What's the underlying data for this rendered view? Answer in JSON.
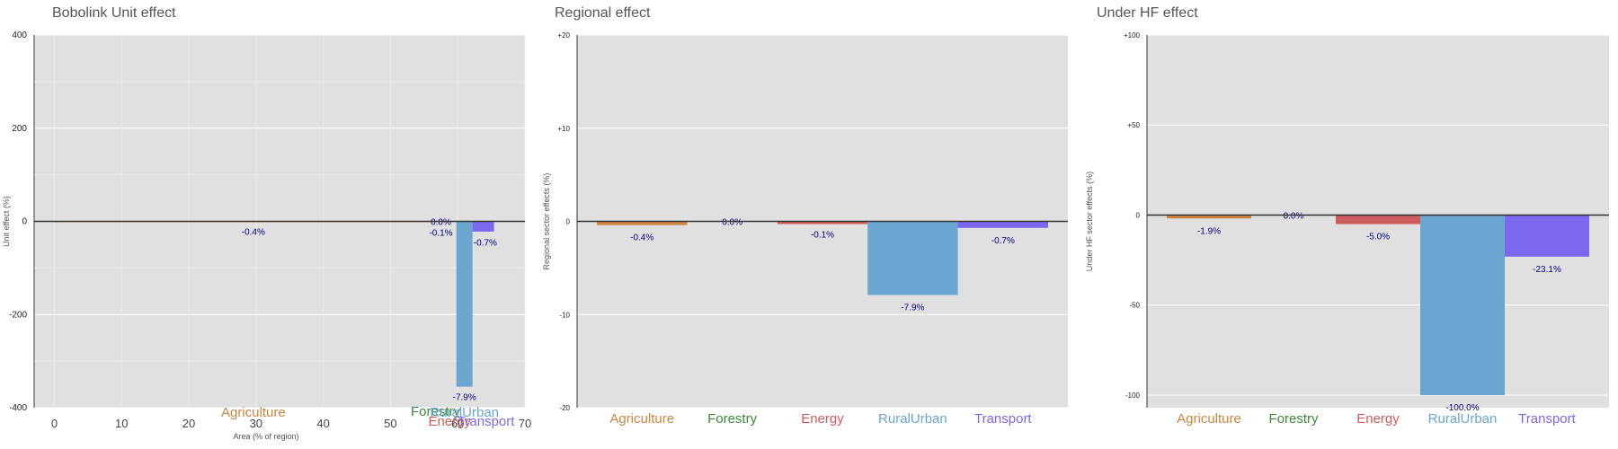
{
  "chart_data": [
    {
      "type": "bar",
      "variant": "area-width",
      "title": "Bobolink Unit effect",
      "xlabel": "Area (% of region)",
      "ylabel": "Unit effect (%)",
      "xlim": [
        -3,
        70
      ],
      "ylim": [
        -400,
        400
      ],
      "x_ticks": [
        0,
        10,
        20,
        30,
        40,
        50,
        60,
        70
      ],
      "y_ticks": [
        400,
        200,
        0,
        -200,
        -400
      ],
      "y_tick_labels": [
        "400",
        "200",
        "0",
        "-200",
        "-400"
      ],
      "grid": true,
      "bars": [
        {
          "name": "Agriculture",
          "x_start": 0,
          "x_end": 59.4,
          "value": -0.4,
          "label": "-0.4%",
          "color": "#cd853f"
        },
        {
          "name": "Forestry",
          "x_start": 59.4,
          "x_end": 59.6,
          "value": 0.0,
          "label": "0.0%",
          "color": "#3a8a3a"
        },
        {
          "name": "Energy",
          "x_start": 59.6,
          "x_end": 59.8,
          "value": -0.1,
          "label": "-0.1%",
          "color": "#cd5c5c"
        },
        {
          "name": "RuralUrban",
          "x_start": 59.8,
          "x_end": 62.2,
          "value": -355,
          "label": "-7.9%",
          "color": "#6aa6d0"
        },
        {
          "name": "Transport",
          "x_start": 62.2,
          "x_end": 65.4,
          "value": -22,
          "label": "-0.7%",
          "color": "#7b68ee"
        }
      ]
    },
    {
      "type": "bar",
      "title": "Regional effect",
      "xlabel": "",
      "ylabel": "Regional sector effects (%)",
      "ylim": [
        -20,
        20
      ],
      "y_ticks": [
        20,
        10,
        0,
        -10,
        -20
      ],
      "y_tick_labels": [
        "+20",
        "+10",
        "0",
        "-10",
        "-20"
      ],
      "grid": true,
      "categories": [
        "Agriculture",
        "Forestry",
        "Energy",
        "RuralUrban",
        "Transport"
      ],
      "values": [
        -0.4,
        0.0,
        -0.1,
        -7.9,
        -0.7
      ],
      "labels": [
        "-0.4%",
        "0.0%",
        "-0.1%",
        "-7.9%",
        "-0.7%"
      ],
      "colors": [
        "#cd853f",
        "#3a8a3a",
        "#cd5c5c",
        "#6aa6d0",
        "#7b68ee"
      ]
    },
    {
      "type": "bar",
      "title": "Under HF effect",
      "xlabel": "",
      "ylabel": "Under HF sector effects (%)",
      "ylim": [
        -107,
        100
      ],
      "y_ticks": [
        100,
        50,
        0,
        -50,
        -100
      ],
      "y_tick_labels": [
        "+100",
        "+50",
        "0",
        "-50",
        "-100"
      ],
      "grid": true,
      "categories": [
        "Agriculture",
        "Forestry",
        "Energy",
        "RuralUrban",
        "Transport"
      ],
      "values": [
        -1.9,
        0.0,
        -5.0,
        -100.0,
        -23.1
      ],
      "labels": [
        "-1.9%",
        "0.0%",
        "-5.0%",
        "-100.0%",
        "-23.1%"
      ],
      "colors": [
        "#cd853f",
        "#3a8a3a",
        "#cd5c5c",
        "#6aa6d0",
        "#7b68ee"
      ]
    }
  ]
}
